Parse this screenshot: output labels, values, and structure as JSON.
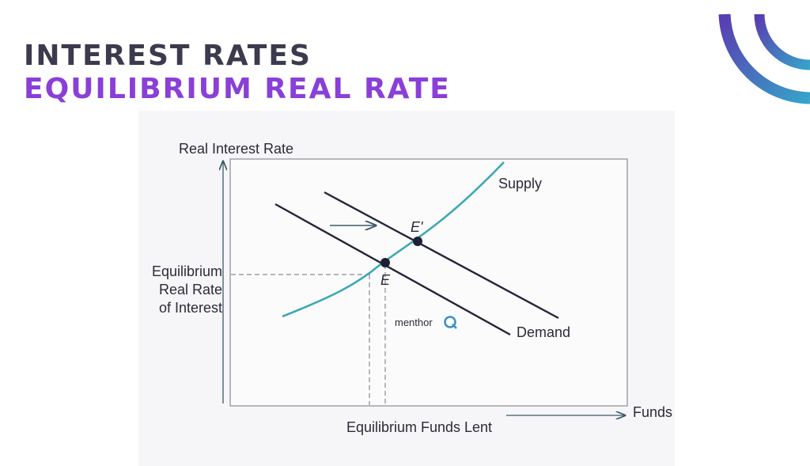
{
  "header": {
    "title": "INTEREST RATES",
    "subtitle": "EQUILIBRIUM REAL RATE"
  },
  "diagram": {
    "y_axis_label": "Real Interest Rate",
    "x_axis_label": "Funds",
    "supply_label": "Supply",
    "demand_label": "Demand",
    "point_new": "E'",
    "point_old": "E",
    "equilibrium_rate_label": [
      "Equilibrium",
      "Real Rate",
      "of Interest"
    ],
    "equilibrium_funds_label": "Equilibrium Funds Lent",
    "logo_text": "menthor"
  }
}
